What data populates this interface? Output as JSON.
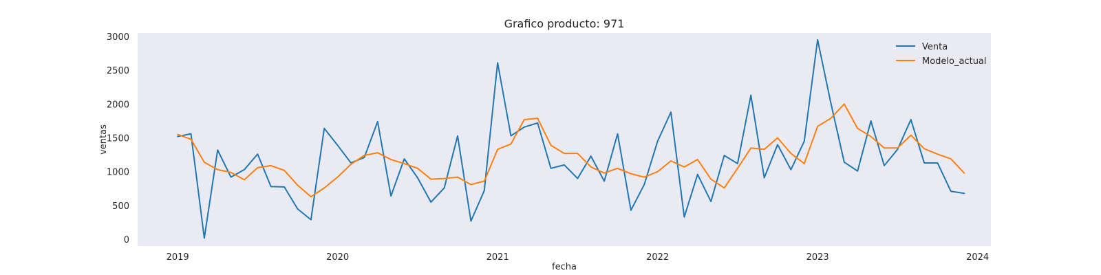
{
  "chart_data": {
    "type": "line",
    "title": "Grafico producto: 971",
    "xlabel": "fecha",
    "ylabel": "ventas",
    "x_start": "2019-01",
    "x_frequency": "monthly",
    "xlim": [
      "2018-10",
      "2024-02"
    ],
    "ylim": [
      -100,
      3050
    ],
    "xticks": [
      "2019",
      "2020",
      "2021",
      "2022",
      "2023",
      "2024"
    ],
    "yticks": [
      0,
      500,
      1000,
      1500,
      2000,
      2500,
      3000
    ],
    "grid": false,
    "legend_position": "top-right",
    "series": [
      {
        "name": "Venta",
        "color": "#1f77b4",
        "values": [
          1520,
          1560,
          20,
          1320,
          920,
          1030,
          1260,
          780,
          775,
          450,
          290,
          1640,
          1390,
          1130,
          1210,
          1740,
          640,
          1190,
          910,
          550,
          760,
          1530,
          270,
          720,
          2610,
          1530,
          1660,
          1720,
          1050,
          1100,
          900,
          1230,
          860,
          1560,
          430,
          810,
          1450,
          1880,
          330,
          960,
          560,
          1240,
          1120,
          2130,
          910,
          1400,
          1030,
          1450,
          2950,
          2010,
          1140,
          1010,
          1750,
          1090,
          1330,
          1770,
          1130,
          1130,
          710,
          680
        ]
      },
      {
        "name": "Modelo_actual",
        "color": "#ff7f0e",
        "values": [
          1550,
          1480,
          1140,
          1030,
          990,
          880,
          1060,
          1090,
          1020,
          800,
          630,
          760,
          920,
          1110,
          1240,
          1280,
          1180,
          1120,
          1050,
          890,
          900,
          920,
          810,
          860,
          1330,
          1410,
          1770,
          1790,
          1390,
          1270,
          1270,
          1070,
          980,
          1050,
          970,
          920,
          1000,
          1160,
          1070,
          1180,
          890,
          760,
          1050,
          1350,
          1330,
          1500,
          1270,
          1120,
          1670,
          1790,
          2000,
          1640,
          1520,
          1350,
          1350,
          1540,
          1340,
          1260,
          1190,
          980
        ]
      }
    ]
  }
}
